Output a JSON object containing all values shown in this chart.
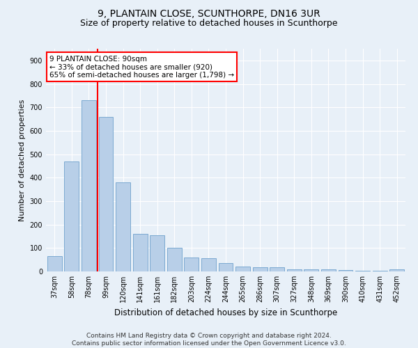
{
  "title": "9, PLANTAIN CLOSE, SCUNTHORPE, DN16 3UR",
  "subtitle": "Size of property relative to detached houses in Scunthorpe",
  "xlabel": "Distribution of detached houses by size in Scunthorpe",
  "ylabel": "Number of detached properties",
  "categories": [
    "37sqm",
    "58sqm",
    "78sqm",
    "99sqm",
    "120sqm",
    "141sqm",
    "161sqm",
    "182sqm",
    "203sqm",
    "224sqm",
    "244sqm",
    "265sqm",
    "286sqm",
    "307sqm",
    "327sqm",
    "348sqm",
    "369sqm",
    "390sqm",
    "410sqm",
    "431sqm",
    "452sqm"
  ],
  "values": [
    65,
    470,
    730,
    660,
    380,
    160,
    155,
    100,
    60,
    55,
    35,
    20,
    18,
    18,
    10,
    8,
    8,
    5,
    4,
    3,
    8
  ],
  "bar_color": "#b8cfe8",
  "bar_edge_color": "#6da0cc",
  "highlight_line_index": 2,
  "annotation_text": "9 PLANTAIN CLOSE: 90sqm\n← 33% of detached houses are smaller (920)\n65% of semi-detached houses are larger (1,798) →",
  "annotation_box_color": "white",
  "annotation_box_edge_color": "red",
  "ylim": [
    0,
    950
  ],
  "yticks": [
    0,
    100,
    200,
    300,
    400,
    500,
    600,
    700,
    800,
    900
  ],
  "footer": "Contains HM Land Registry data © Crown copyright and database right 2024.\nContains public sector information licensed under the Open Government Licence v3.0.",
  "background_color": "#e8f0f8",
  "plot_bg_color": "#e8f0f8",
  "grid_color": "white",
  "title_fontsize": 10,
  "subtitle_fontsize": 9,
  "xlabel_fontsize": 8.5,
  "ylabel_fontsize": 8,
  "tick_fontsize": 7,
  "footer_fontsize": 6.5,
  "annotation_fontsize": 7.5
}
